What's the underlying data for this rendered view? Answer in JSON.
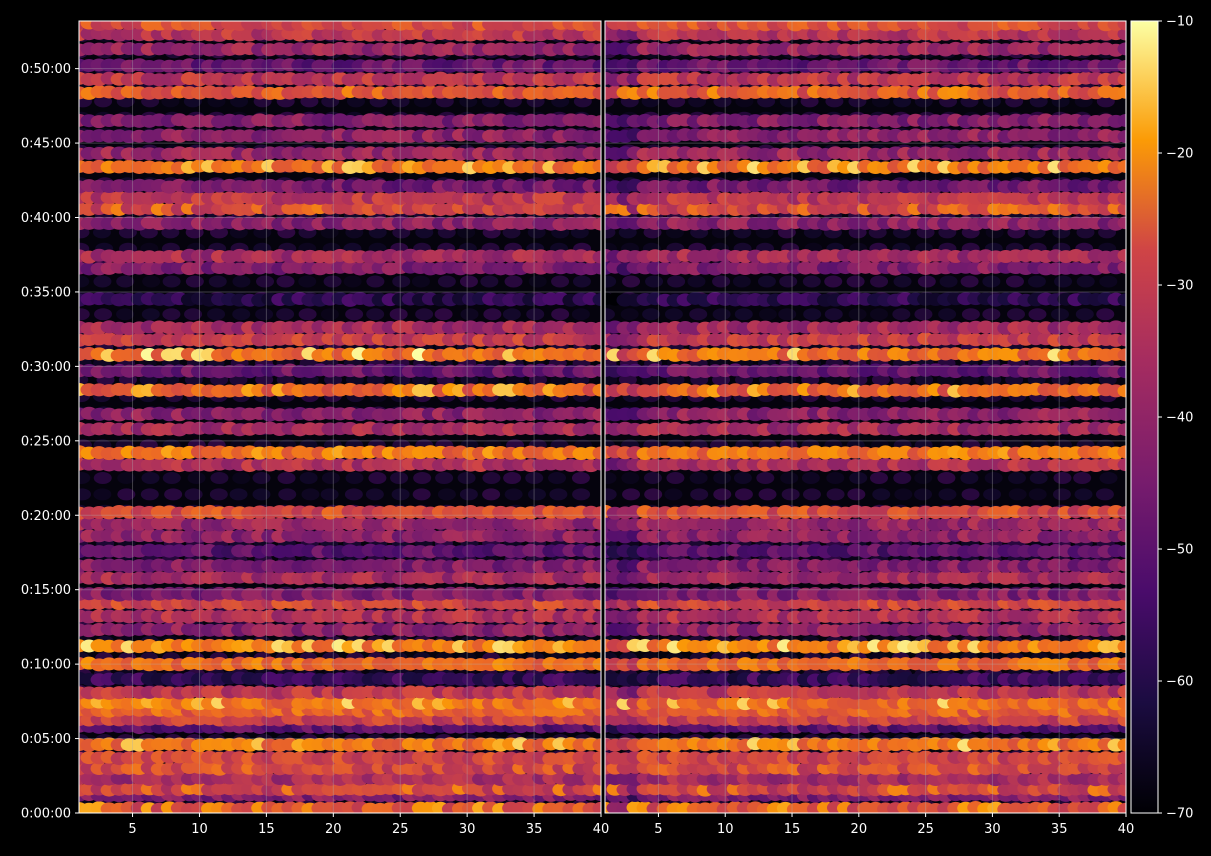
{
  "background": "#000000",
  "foreground": "#ffffff",
  "chart_data": {
    "type": "heatmap",
    "title": "",
    "xlabel": "",
    "ylabel": "",
    "colormap": "inferno",
    "grid": true,
    "y_ticks": [
      "0:00:00",
      "0:05:00",
      "0:10:00",
      "0:15:00",
      "0:20:00",
      "0:25:00",
      "0:30:00",
      "0:35:00",
      "0:40:00",
      "0:45:00",
      "0:50:00"
    ],
    "y_tick_minutes": [
      0,
      5,
      10,
      15,
      20,
      25,
      30,
      35,
      40,
      45,
      50
    ],
    "ylim_minutes": [
      0,
      53.2
    ],
    "panels": [
      {
        "xlim": [
          1,
          40
        ],
        "x_ticks": [
          "5",
          "10",
          "15",
          "20",
          "25",
          "30",
          "35",
          "40"
        ],
        "x_tick_values": [
          5,
          10,
          15,
          20,
          25,
          30,
          35,
          40
        ]
      },
      {
        "xlim": [
          1,
          40
        ],
        "x_ticks": [
          "5",
          "10",
          "15",
          "20",
          "25",
          "30",
          "35",
          "40"
        ],
        "x_tick_values": [
          5,
          10,
          15,
          20,
          25,
          30,
          35,
          40
        ]
      }
    ],
    "colorbar": {
      "min": -70,
      "max": -10,
      "ticks": [
        "−10",
        "−20",
        "−30",
        "−40",
        "−50",
        "−60",
        "−70"
      ],
      "tick_values": [
        -10,
        -20,
        -30,
        -40,
        -50,
        -60,
        -70
      ]
    },
    "bands": [
      {
        "t": 0.3,
        "level": -30,
        "hi": -18
      },
      {
        "t": 1.2,
        "level": -46
      },
      {
        "t": 1.6,
        "level": -34,
        "hi": -22
      },
      {
        "t": 2.3,
        "level": -40
      },
      {
        "t": 3.0,
        "level": -32,
        "hi": -25
      },
      {
        "t": 3.7,
        "level": -32
      },
      {
        "t": 4.6,
        "level": -24,
        "hi": -14
      },
      {
        "t": 5.8,
        "level": -52
      },
      {
        "t": 6.3,
        "level": -34
      },
      {
        "t": 6.9,
        "level": -26
      },
      {
        "t": 7.4,
        "level": -24,
        "hi": -14
      },
      {
        "t": 8.1,
        "level": -36
      },
      {
        "t": 9.0,
        "level": -58
      },
      {
        "t": 10.0,
        "level": -24
      },
      {
        "t": 11.2,
        "level": -22,
        "hi": -13
      },
      {
        "t": 12.3,
        "level": -44
      },
      {
        "t": 13.2,
        "level": -38
      },
      {
        "t": 14.1,
        "level": -32
      },
      {
        "t": 14.7,
        "level": -46
      },
      {
        "t": 15.8,
        "level": -40
      },
      {
        "t": 16.6,
        "level": -46
      },
      {
        "t": 17.6,
        "level": -52
      },
      {
        "t": 18.6,
        "level": -44
      },
      {
        "t": 19.4,
        "level": -42
      },
      {
        "t": 20.2,
        "level": -32,
        "hi": -26
      },
      {
        "t": 23.4,
        "level": -38
      },
      {
        "t": 24.2,
        "level": -24,
        "hi": -18
      },
      {
        "t": 25.8,
        "level": -40
      },
      {
        "t": 26.8,
        "level": -44
      },
      {
        "t": 28.4,
        "level": -26,
        "hi": -16
      },
      {
        "t": 29.7,
        "level": -50
      },
      {
        "t": 30.8,
        "level": -24,
        "hi": -12
      },
      {
        "t": 31.8,
        "level": -34
      },
      {
        "t": 32.6,
        "level": -40
      },
      {
        "t": 34.5,
        "level": -60
      },
      {
        "t": 36.6,
        "level": -46
      },
      {
        "t": 37.4,
        "level": -40
      },
      {
        "t": 39.6,
        "level": -44
      },
      {
        "t": 40.6,
        "level": -32,
        "hi": -22
      },
      {
        "t": 41.3,
        "level": -36
      },
      {
        "t": 42.1,
        "level": -48
      },
      {
        "t": 43.4,
        "level": -24,
        "hi": -14
      },
      {
        "t": 44.3,
        "level": -42
      },
      {
        "t": 45.5,
        "level": -44
      },
      {
        "t": 46.5,
        "level": -46
      },
      {
        "t": 48.4,
        "level": -28,
        "hi": -20
      },
      {
        "t": 49.3,
        "level": -36
      },
      {
        "t": 50.2,
        "level": -50
      },
      {
        "t": 51.3,
        "level": -42
      },
      {
        "t": 52.3,
        "level": -36
      },
      {
        "t": 53.0,
        "level": -30
      }
    ]
  }
}
